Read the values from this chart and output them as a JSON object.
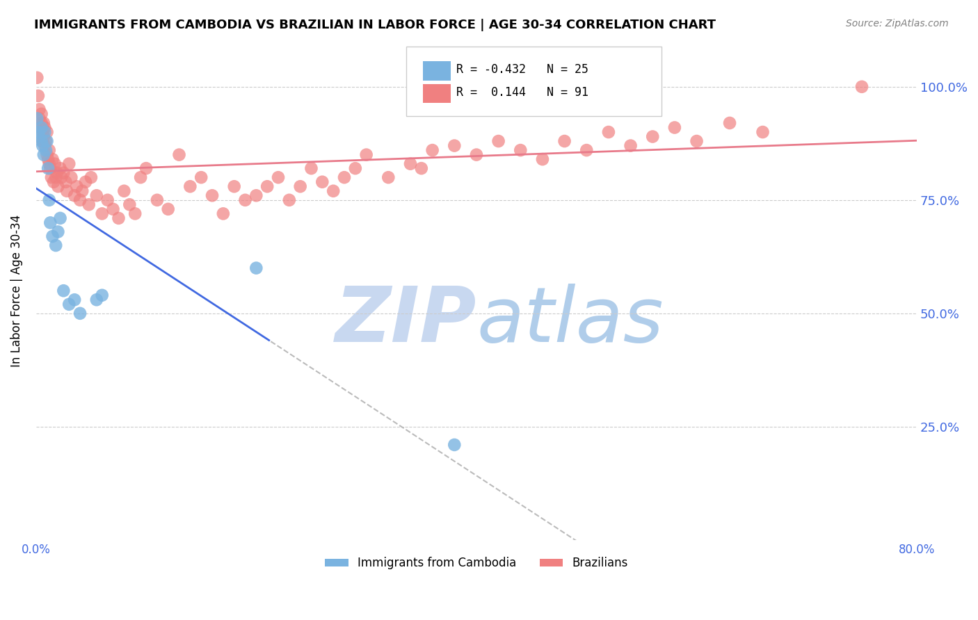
{
  "title": "IMMIGRANTS FROM CAMBODIA VS BRAZILIAN IN LABOR FORCE | AGE 30-34 CORRELATION CHART",
  "source": "Source: ZipAtlas.com",
  "ylabel": "In Labor Force | Age 30-34",
  "xlim": [
    0.0,
    0.8
  ],
  "ylim": [
    0.0,
    1.1
  ],
  "cambodia_color": "#7ab3e0",
  "brazil_color": "#f08080",
  "trend_cambodia_color": "#4169e1",
  "trend_brazil_color": "#e87a8a",
  "watermark_zip_color": "#c8d8f0",
  "watermark_atlas_color": "#a8c8e8",
  "tick_color": "#4169e1",
  "grid_color": "#cccccc",
  "background_color": "#ffffff",
  "cambodia_points_x": [
    0.001,
    0.002,
    0.003,
    0.005,
    0.005,
    0.006,
    0.007,
    0.008,
    0.009,
    0.01,
    0.011,
    0.012,
    0.013,
    0.015,
    0.018,
    0.02,
    0.022,
    0.025,
    0.03,
    0.035,
    0.04,
    0.055,
    0.06,
    0.38,
    0.2
  ],
  "cambodia_points_y": [
    0.93,
    0.9,
    0.89,
    0.88,
    0.91,
    0.87,
    0.85,
    0.9,
    0.86,
    0.88,
    0.82,
    0.75,
    0.7,
    0.67,
    0.65,
    0.68,
    0.71,
    0.55,
    0.52,
    0.53,
    0.5,
    0.53,
    0.54,
    0.21,
    0.6
  ],
  "brazil_points_x": [
    0.001,
    0.002,
    0.003,
    0.003,
    0.004,
    0.005,
    0.005,
    0.006,
    0.006,
    0.007,
    0.007,
    0.008,
    0.008,
    0.009,
    0.01,
    0.01,
    0.011,
    0.012,
    0.012,
    0.013,
    0.014,
    0.015,
    0.016,
    0.017,
    0.018,
    0.019,
    0.02,
    0.022,
    0.023,
    0.025,
    0.027,
    0.028,
    0.03,
    0.032,
    0.035,
    0.037,
    0.04,
    0.042,
    0.045,
    0.048,
    0.05,
    0.055,
    0.06,
    0.065,
    0.07,
    0.075,
    0.08,
    0.085,
    0.09,
    0.095,
    0.1,
    0.11,
    0.12,
    0.13,
    0.14,
    0.15,
    0.16,
    0.17,
    0.18,
    0.19,
    0.2,
    0.21,
    0.22,
    0.23,
    0.24,
    0.25,
    0.26,
    0.27,
    0.28,
    0.29,
    0.3,
    0.32,
    0.34,
    0.35,
    0.36,
    0.38,
    0.4,
    0.42,
    0.44,
    0.46,
    0.48,
    0.5,
    0.52,
    0.54,
    0.56,
    0.58,
    0.6,
    0.63,
    0.66,
    0.75
  ],
  "brazil_points_y": [
    1.02,
    0.98,
    0.93,
    0.95,
    0.91,
    0.92,
    0.94,
    0.9,
    0.88,
    0.89,
    0.92,
    0.87,
    0.91,
    0.88,
    0.85,
    0.9,
    0.84,
    0.83,
    0.86,
    0.82,
    0.8,
    0.84,
    0.79,
    0.83,
    0.8,
    0.81,
    0.78,
    0.82,
    0.8,
    0.81,
    0.79,
    0.77,
    0.83,
    0.8,
    0.76,
    0.78,
    0.75,
    0.77,
    0.79,
    0.74,
    0.8,
    0.76,
    0.72,
    0.75,
    0.73,
    0.71,
    0.77,
    0.74,
    0.72,
    0.8,
    0.82,
    0.75,
    0.73,
    0.85,
    0.78,
    0.8,
    0.76,
    0.72,
    0.78,
    0.75,
    0.76,
    0.78,
    0.8,
    0.75,
    0.78,
    0.82,
    0.79,
    0.77,
    0.8,
    0.82,
    0.85,
    0.8,
    0.83,
    0.82,
    0.86,
    0.87,
    0.85,
    0.88,
    0.86,
    0.84,
    0.88,
    0.86,
    0.9,
    0.87,
    0.89,
    0.91,
    0.88,
    0.92,
    0.9,
    1.0
  ]
}
